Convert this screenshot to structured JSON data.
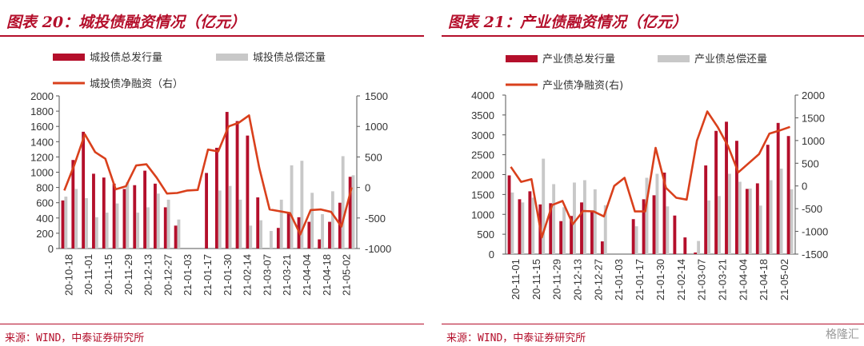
{
  "charts": [
    {
      "title": "图表 20：城投债融资情况（亿元）",
      "source": "来源：WIND，中泰证券研究所",
      "legend": {
        "issue": "城投债总发行量",
        "repay": "城投债总偿还量",
        "net": "城投债净融资（右）"
      }
    },
    {
      "title": "图表 21：产业债融资情况（亿元）",
      "source": "来源：WIND，中泰证券研究所",
      "legend": {
        "issue": "产业债总发行量",
        "repay": "产业债总偿还量",
        "net": "产业债净融资(右)"
      }
    }
  ],
  "watermark": "格隆汇",
  "colors": {
    "issue": "#b40f2b",
    "repay": "#c8c8c8",
    "net": "#d9401c",
    "accent": "#b40f2b"
  },
  "chart_data": [
    {
      "type": "bar",
      "x_tick_labels": [
        "20-10-18",
        "20-11-01",
        "20-11-15",
        "20-11-29",
        "20-12-13",
        "20-12-27",
        "21-01-03",
        "21-01-17",
        "21-01-30",
        "21-02-14",
        "21-03-07",
        "21-03-21",
        "21-04-04",
        "21-04-18",
        "21-05-02"
      ],
      "y_left": {
        "ticks": [
          "0",
          "200",
          "400",
          "600",
          "800",
          "1000",
          "1200",
          "1400",
          "1600",
          "1800",
          "2000"
        ],
        "min": 0,
        "max": 2000
      },
      "y_right": {
        "ticks": [
          "-1000",
          "-500",
          "0",
          "500",
          "1000",
          "1500"
        ],
        "min": -1000,
        "max": 1500
      },
      "series": [
        {
          "name": "城投债总发行量",
          "kind": "bar",
          "axis": "left",
          "values": [
            630,
            1160,
            1530,
            980,
            930,
            850,
            780,
            830,
            1020,
            850,
            540,
            300,
            0,
            0,
            990,
            1320,
            1790,
            1670,
            1480,
            670,
            0,
            270,
            470,
            410,
            350,
            120,
            350,
            600,
            940
          ]
        },
        {
          "name": "城投债总偿还量",
          "kind": "bar",
          "axis": "left",
          "values": [
            680,
            780,
            660,
            410,
            470,
            590,
            870,
            470,
            540,
            720,
            640,
            380,
            0,
            0,
            0,
            760,
            820,
            640,
            300,
            370,
            230,
            640,
            1090,
            1150,
            730,
            450,
            750,
            1210,
            960
          ]
        },
        {
          "name": "城投债净融资（右）",
          "kind": "line",
          "axis": "right",
          "values": [
            -50,
            380,
            870,
            580,
            470,
            -30,
            20,
            360,
            380,
            160,
            -100,
            -90,
            -50,
            -40,
            620,
            590,
            1000,
            1060,
            1180,
            320,
            -360,
            -390,
            -420,
            -770,
            -370,
            -360,
            -400,
            -640,
            0
          ]
        }
      ]
    },
    {
      "type": "bar",
      "x_tick_labels": [
        "20-11-01",
        "20-11-15",
        "20-11-29",
        "20-12-13",
        "20-12-27",
        "21-01-03",
        "21-01-17",
        "21-01-30",
        "21-02-14",
        "21-03-07",
        "21-03-21",
        "21-04-04",
        "21-04-18",
        "21-05-02"
      ],
      "y_left": {
        "ticks": [
          "0",
          "500",
          "1000",
          "1500",
          "2000",
          "2500",
          "3000",
          "3500",
          "4000"
        ],
        "min": 0,
        "max": 4000
      },
      "y_right": {
        "ticks": [
          "-1500",
          "-1000",
          "-500",
          "0",
          "500",
          "1000",
          "1500",
          "2000"
        ],
        "min": -1500,
        "max": 2000
      },
      "series": [
        {
          "name": "产业债总发行量",
          "kind": "bar",
          "axis": "left",
          "values": [
            1980,
            1380,
            1580,
            1250,
            1280,
            830,
            960,
            1300,
            1080,
            320,
            0,
            0,
            880,
            1380,
            1480,
            2050,
            970,
            420,
            40,
            2230,
            3100,
            3330,
            2850,
            1640,
            1780,
            2750,
            3300,
            2970
          ]
        },
        {
          "name": "产业债总偿还量",
          "kind": "bar",
          "axis": "left",
          "values": [
            1550,
            1300,
            1420,
            2400,
            1760,
            1180,
            1800,
            1860,
            1630,
            1230,
            0,
            0,
            700,
            1920,
            2020,
            1200,
            0,
            0,
            330,
            1350,
            1460,
            2020,
            1820,
            1650,
            1220,
            1860,
            2150,
            1630
          ]
        },
        {
          "name": "产业债净融资(右)",
          "kind": "line",
          "axis": "right",
          "values": [
            420,
            90,
            150,
            -1130,
            -420,
            -330,
            -840,
            -550,
            -560,
            -670,
            0,
            180,
            -560,
            -560,
            840,
            -40,
            -260,
            -300,
            1000,
            1640,
            1300,
            880,
            300,
            500,
            700,
            1150,
            1220,
            1300
          ]
        }
      ]
    }
  ]
}
